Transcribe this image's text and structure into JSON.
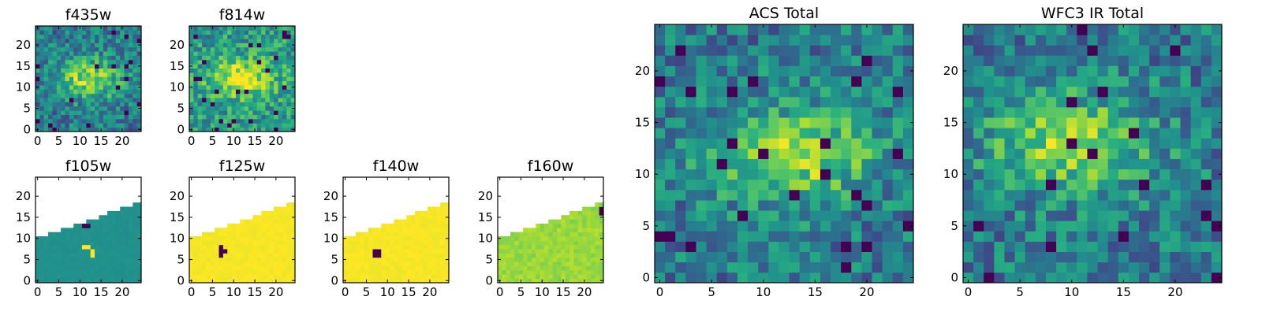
{
  "figure": {
    "colormap": "viridis",
    "colors": {
      "low": "#440154",
      "mid_low": "#31688e",
      "mid": "#21918c",
      "mid_high": "#5ec962",
      "high": "#fde725",
      "blank": "#ffffff"
    }
  },
  "chart_data": [
    {
      "type": "heatmap",
      "title": "f435w",
      "grid": [
        25,
        25
      ],
      "xticks": [
        0,
        5,
        10,
        15,
        20
      ],
      "yticks": [
        0,
        5,
        10,
        15,
        20
      ],
      "xlim": [
        0,
        25
      ],
      "ylim": [
        0,
        25
      ],
      "peak": [
        12,
        12
      ],
      "pattern": "noisy-blob",
      "lowline": []
    },
    {
      "type": "heatmap",
      "title": "f814w",
      "grid": [
        25,
        25
      ],
      "xticks": [
        0,
        5,
        10,
        15,
        20
      ],
      "yticks": [
        0,
        5,
        10,
        15,
        20
      ],
      "xlim": [
        0,
        25
      ],
      "ylim": [
        0,
        25
      ],
      "peak": [
        12,
        12
      ],
      "pattern": "noisy-blob-bright",
      "lowline": []
    },
    {
      "type": "heatmap",
      "title": "f105w",
      "grid": [
        25,
        25
      ],
      "xticks": [
        0,
        5,
        10,
        15,
        20
      ],
      "yticks": [
        0,
        5,
        10,
        15,
        20
      ],
      "xlim": [
        0,
        25
      ],
      "ylim": [
        0,
        25
      ],
      "mask_edge": [
        10,
        18.5
      ],
      "pattern": "masked-flat",
      "base_value": 0.5,
      "low_pixels": [
        [
          11,
          13
        ],
        [
          12,
          13
        ]
      ],
      "bright_pixels": [
        [
          11,
          8
        ],
        [
          12,
          8
        ],
        [
          13,
          6
        ],
        [
          13,
          7
        ]
      ]
    },
    {
      "type": "heatmap",
      "title": "f125w",
      "grid": [
        25,
        25
      ],
      "xticks": [
        0,
        5,
        10,
        15,
        20
      ],
      "yticks": [
        0,
        5,
        10,
        15,
        20
      ],
      "xlim": [
        0,
        25
      ],
      "ylim": [
        0,
        25
      ],
      "mask_edge": [
        10,
        18.5
      ],
      "pattern": "masked-flat",
      "base_value": 0.99,
      "low_pixels": [
        [
          7,
          6
        ],
        [
          7,
          7
        ],
        [
          8,
          7
        ],
        [
          7,
          8
        ]
      ],
      "bright_pixels": []
    },
    {
      "type": "heatmap",
      "title": "f140w",
      "grid": [
        25,
        25
      ],
      "xticks": [
        0,
        5,
        10,
        15,
        20
      ],
      "yticks": [
        0,
        5,
        10,
        15,
        20
      ],
      "xlim": [
        0,
        25
      ],
      "ylim": [
        0,
        25
      ],
      "mask_edge": [
        10,
        18.5
      ],
      "pattern": "masked-flat",
      "base_value": 0.99,
      "low_pixels": [
        [
          7,
          6
        ],
        [
          8,
          6
        ],
        [
          7,
          7
        ],
        [
          8,
          7
        ]
      ],
      "bright_pixels": []
    },
    {
      "type": "heatmap",
      "title": "f160w",
      "grid": [
        25,
        25
      ],
      "xticks": [
        0,
        5,
        10,
        15,
        20
      ],
      "yticks": [
        0,
        5,
        10,
        15,
        20
      ],
      "xlim": [
        0,
        25
      ],
      "ylim": [
        0,
        25
      ],
      "mask_edge": [
        10,
        18.5
      ],
      "pattern": "masked-gradient",
      "base_value": 0.85,
      "low_pixels": [
        [
          24,
          16
        ],
        [
          24,
          17
        ]
      ],
      "bright_pixels": []
    },
    {
      "type": "heatmap",
      "title": "ACS Total",
      "grid": [
        25,
        25
      ],
      "xticks": [
        0,
        5,
        10,
        15,
        20
      ],
      "yticks": [
        0,
        5,
        10,
        15,
        20
      ],
      "xlim": [
        0,
        25
      ],
      "ylim": [
        0,
        25
      ],
      "peak": [
        13,
        12
      ],
      "pattern": "noisy-blob",
      "lowline": []
    },
    {
      "type": "heatmap",
      "title": "WFC3 IR Total",
      "grid": [
        25,
        25
      ],
      "xticks": [
        0,
        5,
        10,
        15,
        20
      ],
      "yticks": [
        0,
        5,
        10,
        15,
        20
      ],
      "xlim": [
        0,
        25
      ],
      "ylim": [
        0,
        25
      ],
      "peak": [
        10,
        13
      ],
      "pattern": "noisy-blob",
      "lowline": []
    }
  ]
}
